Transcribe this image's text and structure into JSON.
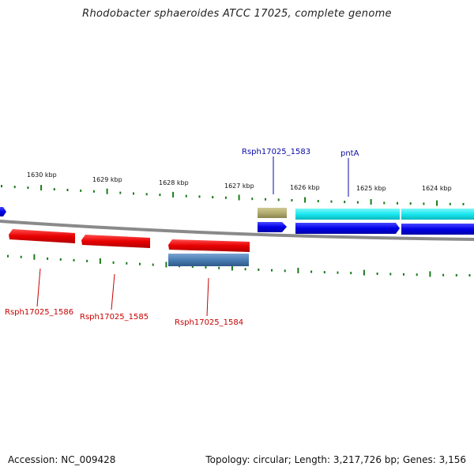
{
  "title": "Rhodobacter sphaeroides ATCC 17025, complete genome",
  "footer": {
    "accession": "Accession: NC_009428",
    "summary": "Topology: circular; Length: 3,217,726 bp; Genes: 3,156"
  },
  "scale_labels": [
    "1630 kbp",
    "1629 kbp",
    "1628 kbp",
    "1627 kbp",
    "1626 kbp",
    "1625 kbp",
    "1624 kbp"
  ],
  "gene_labels": {
    "rsph_1583": "Rsph17025_1583",
    "pntA": "pntA",
    "rsph_1586": "Rsph17025_1586",
    "rsph_1585": "Rsph17025_1585",
    "rsph_1584": "Rsph17025_1584"
  },
  "colors": {
    "forward_strand": "#0000e8",
    "reverse_strand": "#e80000",
    "cyan_feature": "#19e8f0",
    "olive_feature": "#b2ac70",
    "steel_feature": "#4a7eb4",
    "backbone": "#8a8a8a",
    "tick": "#1a7a1a",
    "top_label": "#0a0aa8",
    "bottom_label": "#c80000"
  }
}
